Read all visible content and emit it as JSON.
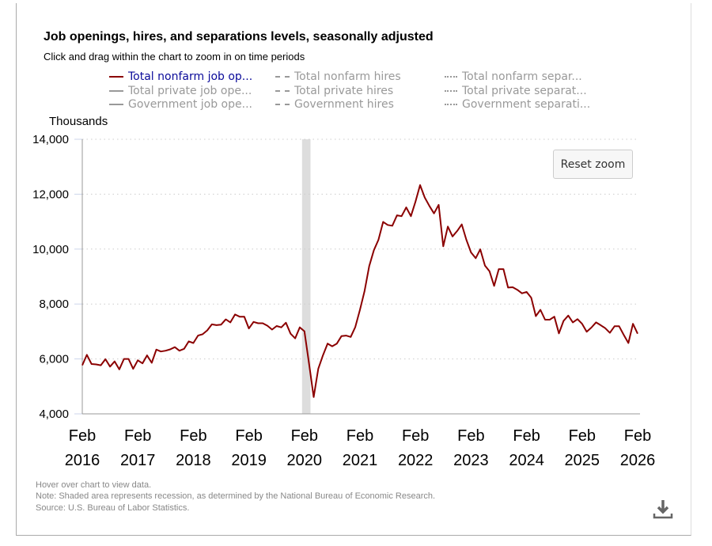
{
  "title": "Job openings, hires, and separations levels, seasonally adjusted",
  "subtitle": "Click and drag within the chart to zoom in on time periods",
  "legend": [
    {
      "label": "Total nonfarm job op...",
      "style": "solid",
      "active": true
    },
    {
      "label": "Total private job ope...",
      "style": "solid",
      "active": false
    },
    {
      "label": "Government job ope...",
      "style": "solid",
      "active": false
    },
    {
      "label": "Total nonfarm hires",
      "style": "dash",
      "active": false
    },
    {
      "label": "Total private hires",
      "style": "dash",
      "active": false
    },
    {
      "label": "Government hires",
      "style": "dash",
      "active": false
    },
    {
      "label": "Total nonfarm separ...",
      "style": "dot",
      "active": false
    },
    {
      "label": "Total private separat...",
      "style": "dot",
      "active": false
    },
    {
      "label": "Government separati...",
      "style": "dot",
      "active": false
    }
  ],
  "reset_zoom_label": "Reset zoom",
  "footer": [
    "Hover over chart to view data.",
    "Note: Shaded area represents recession, as determined by the National Bureau of Economic Research.",
    "Source: U.S. Bureau of Labor Statistics."
  ],
  "download_icon": "download-icon",
  "colors": {
    "series": "#8b0000",
    "legend_active": "#0a0a9a",
    "recession": "#dddddd"
  },
  "chart_data": {
    "type": "line",
    "title": "Job openings, hires, and separations levels, seasonally adjusted",
    "ylabel": "Thousands",
    "ylim": [
      4000,
      14000
    ],
    "yticks": [
      "4,000",
      "6,000",
      "8,000",
      "10,000",
      "12,000",
      "14,000"
    ],
    "ytick_values": [
      4000,
      6000,
      8000,
      10000,
      12000,
      14000
    ],
    "xticks": [
      [
        "Feb",
        "2016"
      ],
      [
        "Feb",
        "2017"
      ],
      [
        "Feb",
        "2018"
      ],
      [
        "Feb",
        "2019"
      ],
      [
        "Feb",
        "2020"
      ],
      [
        "Feb",
        "2021"
      ],
      [
        "Feb",
        "2022"
      ],
      [
        "Feb",
        "2023"
      ],
      [
        "Feb",
        "2024"
      ],
      [
        "Feb",
        "2025"
      ],
      [
        "Feb",
        "2026"
      ]
    ],
    "x_start": "2016-02",
    "x_end": "2026-02",
    "frequency": "monthly",
    "grid": "horizontal dotted",
    "recession": {
      "start": "2020-02",
      "end": "2020-04"
    },
    "series": [
      {
        "name": "Total nonfarm job openings",
        "values": [
          5770,
          6150,
          5815,
          5800,
          5770,
          5990,
          5720,
          5910,
          5620,
          6000,
          6000,
          5640,
          5950,
          5840,
          6130,
          5860,
          6340,
          6270,
          6300,
          6350,
          6430,
          6300,
          6370,
          6640,
          6580,
          6850,
          6900,
          7040,
          7260,
          7230,
          7250,
          7440,
          7330,
          7620,
          7540,
          7540,
          7110,
          7350,
          7300,
          7300,
          7210,
          7070,
          7200,
          7150,
          7320,
          6920,
          6750,
          7150,
          7010,
          5840,
          4610,
          5640,
          6130,
          6560,
          6460,
          6560,
          6830,
          6850,
          6800,
          7160,
          7790,
          8470,
          9380,
          9960,
          10340,
          10990,
          10880,
          10850,
          11230,
          11200,
          11520,
          11200,
          11730,
          12330,
          11880,
          11570,
          11300,
          11610,
          10100,
          10820,
          10460,
          10660,
          10900,
          10340,
          9880,
          9670,
          9990,
          9400,
          9190,
          8660,
          9270,
          9270,
          8600,
          8610,
          8520,
          8390,
          8440,
          8230,
          7560,
          7790,
          7430,
          7430,
          7540,
          6930,
          7390,
          7580,
          7330,
          7450,
          7280,
          6990,
          7140,
          7330,
          7230,
          7120,
          6950,
          7190,
          7190,
          6880,
          6580,
          7280,
          6920
        ]
      }
    ]
  }
}
